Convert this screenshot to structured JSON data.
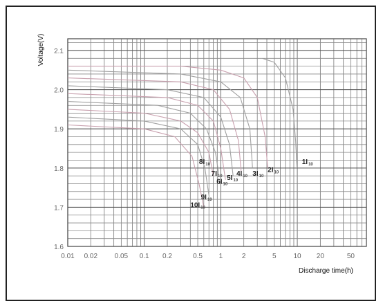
{
  "chart_data": {
    "type": "line",
    "xscale": "log",
    "xlabel": "Discharge time(h)",
    "ylabel": "Voltage(V)",
    "xlim": [
      0.01,
      80
    ],
    "ylim": [
      1.6,
      2.13
    ],
    "grid": true,
    "x_ticks": [
      0.01,
      0.02,
      0.05,
      0.1,
      0.2,
      0.5,
      1,
      2,
      5,
      10,
      20,
      50
    ],
    "x_tick_labels": [
      "0.01",
      "0.02",
      "0.05",
      "0.1",
      "0.2",
      "0.5",
      "1",
      "2",
      "5",
      "10",
      "20",
      "50"
    ],
    "y_ticks": [
      1.6,
      1.7,
      1.8,
      1.9,
      2.0,
      2.1
    ],
    "y_tick_labels": [
      "1.6",
      "1.7",
      "1.8",
      "1.9",
      "2.0",
      "2.1"
    ],
    "series": [
      {
        "name": "1I",
        "sub": "10",
        "color": "#a0a0a0",
        "label_at": [
          11.5,
          1.81
        ],
        "points": [
          [
            3.5,
            2.08
          ],
          [
            5,
            2.07
          ],
          [
            7,
            2.03
          ],
          [
            8.8,
            1.95
          ],
          [
            9.5,
            1.87
          ],
          [
            9.9,
            1.8
          ]
        ]
      },
      {
        "name": "2I",
        "sub": "10",
        "color": "#c8a0ae",
        "label_at": [
          4.1,
          1.79
        ],
        "points": [
          [
            0.01,
            2.06
          ],
          [
            0.3,
            2.06
          ],
          [
            1,
            2.05
          ],
          [
            2,
            2.03
          ],
          [
            3,
            1.98
          ],
          [
            3.8,
            1.88
          ],
          [
            4.1,
            1.8
          ]
        ]
      },
      {
        "name": "3I",
        "sub": "10",
        "color": "#a0a0a0",
        "label_at": [
          2.6,
          1.78
        ],
        "points": [
          [
            0.01,
            2.05
          ],
          [
            0.3,
            2.04
          ],
          [
            1,
            2.02
          ],
          [
            1.8,
            1.98
          ],
          [
            2.4,
            1.9
          ],
          [
            2.6,
            1.8
          ]
        ]
      },
      {
        "name": "4I",
        "sub": "10",
        "color": "#c8a0ae",
        "label_at": [
          1.6,
          1.78
        ],
        "points": [
          [
            0.01,
            2.03
          ],
          [
            0.3,
            2.02
          ],
          [
            0.8,
            2.0
          ],
          [
            1.3,
            1.95
          ],
          [
            1.7,
            1.87
          ],
          [
            1.85,
            1.79
          ]
        ]
      },
      {
        "name": "5I",
        "sub": "10",
        "color": "#a0a0a0",
        "label_at": [
          1.2,
          1.77
        ],
        "points": [
          [
            0.01,
            2.01
          ],
          [
            0.2,
            2.0
          ],
          [
            0.6,
            1.98
          ],
          [
            1.0,
            1.93
          ],
          [
            1.3,
            1.86
          ],
          [
            1.45,
            1.78
          ]
        ]
      },
      {
        "name": "6I",
        "sub": "10",
        "color": "#c8a0ae",
        "label_at": [
          0.88,
          1.76
        ],
        "points": [
          [
            0.01,
            1.99
          ],
          [
            0.2,
            1.98
          ],
          [
            0.5,
            1.96
          ],
          [
            0.8,
            1.92
          ],
          [
            1.0,
            1.85
          ],
          [
            1.15,
            1.77
          ]
        ]
      },
      {
        "name": "7I",
        "sub": "10",
        "color": "#a0a0a0",
        "label_at": [
          0.75,
          1.78
        ],
        "points": [
          [
            0.01,
            1.97
          ],
          [
            0.15,
            1.96
          ],
          [
            0.4,
            1.94
          ],
          [
            0.65,
            1.9
          ],
          [
            0.85,
            1.84
          ],
          [
            0.95,
            1.78
          ]
        ]
      },
      {
        "name": "8I",
        "sub": "10",
        "color": "#c8a0ae",
        "label_at": [
          0.52,
          1.81
        ],
        "points": [
          [
            0.01,
            1.95
          ],
          [
            0.1,
            1.94
          ],
          [
            0.3,
            1.92
          ],
          [
            0.5,
            1.89
          ],
          [
            0.7,
            1.84
          ],
          [
            0.8,
            1.78
          ]
        ]
      },
      {
        "name": "9I",
        "sub": "10",
        "color": "#a0a0a0",
        "label_at": [
          0.55,
          1.72
        ],
        "points": [
          [
            0.01,
            1.93
          ],
          [
            0.1,
            1.92
          ],
          [
            0.3,
            1.9
          ],
          [
            0.5,
            1.86
          ],
          [
            0.62,
            1.8
          ],
          [
            0.7,
            1.73
          ]
        ]
      },
      {
        "name": "10I",
        "sub": "10",
        "color": "#c8a0ae",
        "label_at": [
          0.4,
          1.7
        ],
        "points": [
          [
            0.01,
            1.91
          ],
          [
            0.1,
            1.9
          ],
          [
            0.25,
            1.88
          ],
          [
            0.42,
            1.83
          ],
          [
            0.52,
            1.76
          ],
          [
            0.6,
            1.7
          ]
        ]
      }
    ]
  }
}
